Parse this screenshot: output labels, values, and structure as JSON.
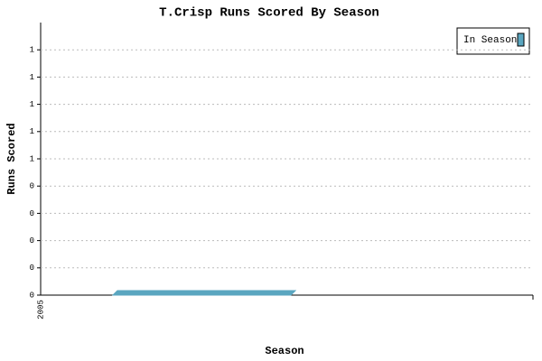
{
  "chart_data": {
    "type": "bar",
    "title": "T.Crisp Runs Scored By Season",
    "x_label": "Season",
    "y_label": "Runs Scored",
    "categories": [
      "2005"
    ],
    "series": [
      {
        "name": "In Season",
        "color": "#5aa6c0",
        "values": [
          0
        ]
      }
    ],
    "ylim": [
      0,
      1
    ],
    "yticks": [
      0,
      {
        "value": 0.1,
        "label": "0"
      },
      {
        "value": 0.2,
        "label": "0"
      },
      {
        "value": 0.3,
        "label": "0"
      },
      {
        "value": 0.4,
        "label": "0"
      },
      {
        "value": 0.5,
        "label": "1"
      },
      {
        "value": 0.6,
        "label": "1"
      },
      {
        "value": 0.7,
        "label": "1"
      },
      {
        "value": 0.8,
        "label": "1"
      },
      {
        "value": 0.9,
        "label": "1"
      }
    ],
    "grid": true,
    "legend": "top-right"
  }
}
